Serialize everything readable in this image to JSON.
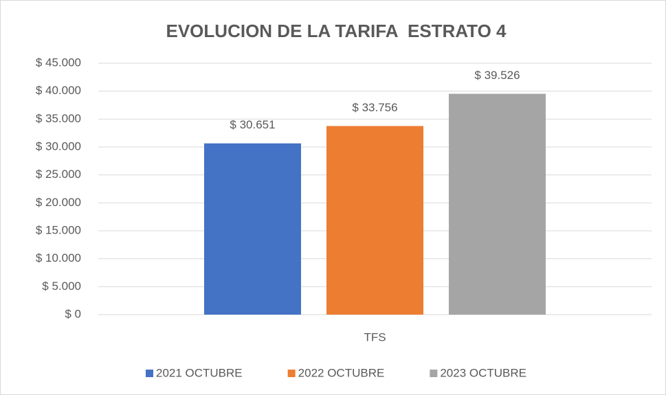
{
  "chart_data": {
    "type": "bar",
    "title": "EVOLUCION DE LA TARIFA  ESTRATO 4",
    "categories": [
      "TFS"
    ],
    "series": [
      {
        "name": "2021 OCTUBRE",
        "color": "#4472c4",
        "values": [
          30651
        ],
        "value_labels": [
          "$ 30.651"
        ]
      },
      {
        "name": "2022 OCTUBRE",
        "color": "#ed7d31",
        "values": [
          33756
        ],
        "value_labels": [
          "$ 33.756"
        ]
      },
      {
        "name": "2023 OCTUBRE",
        "color": "#a5a5a5",
        "values": [
          39526
        ],
        "value_labels": [
          "$ 39.526"
        ]
      }
    ],
    "ylim": [
      0,
      45000
    ],
    "yticks": [
      {
        "value": 0,
        "label": "$ 0"
      },
      {
        "value": 5000,
        "label": "$ 5.000"
      },
      {
        "value": 10000,
        "label": "$ 10.000"
      },
      {
        "value": 15000,
        "label": "$ 15.000"
      },
      {
        "value": 20000,
        "label": "$ 20.000"
      },
      {
        "value": 25000,
        "label": "$ 25.000"
      },
      {
        "value": 30000,
        "label": "$ 30.000"
      },
      {
        "value": 35000,
        "label": "$ 35.000"
      },
      {
        "value": 40000,
        "label": "$ 40.000"
      },
      {
        "value": 45000,
        "label": "$ 45.000"
      }
    ],
    "grid": true,
    "legend": "bottom"
  }
}
